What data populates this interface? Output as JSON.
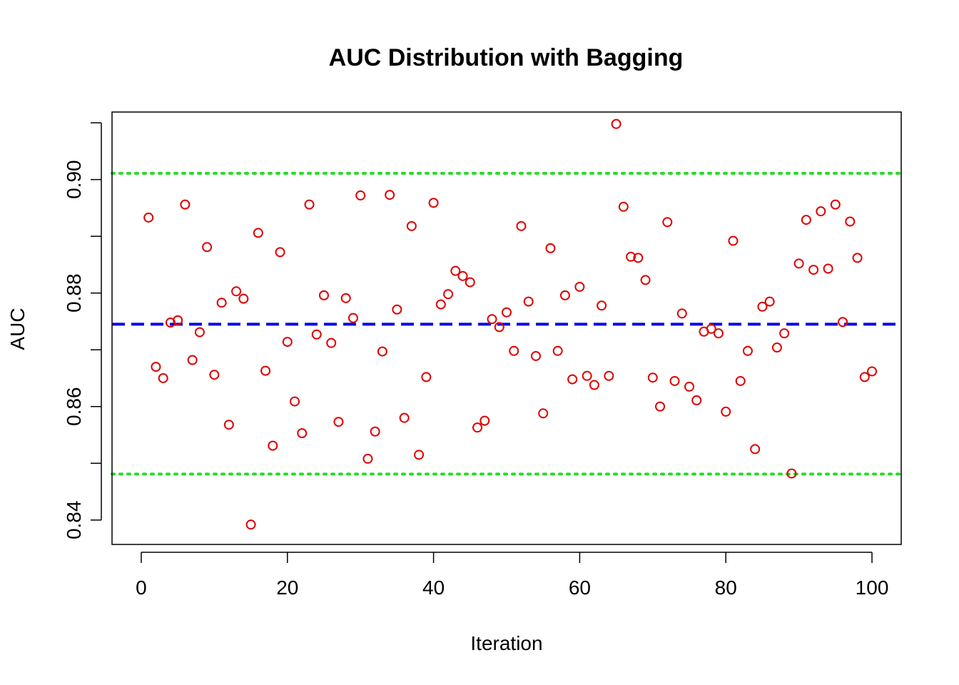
{
  "chart_data": {
    "type": "scatter",
    "title": "AUC Distribution with Bagging",
    "xlabel": "Iteration",
    "ylabel": "AUC",
    "xlim": [
      -4,
      104
    ],
    "ylim": [
      0.8357,
      0.9119
    ],
    "xticks": [
      0,
      20,
      40,
      60,
      80,
      100
    ],
    "xtick_labels": [
      "0",
      "20",
      "40",
      "60",
      "80",
      "100"
    ],
    "yticks": [
      0.84,
      0.85,
      0.86,
      0.87,
      0.88,
      0.89,
      0.9,
      0.91
    ],
    "ytick_labels": [
      "0.84",
      "",
      "0.86",
      "",
      "0.88",
      "",
      "0.90",
      ""
    ],
    "grid": false,
    "legend": "none",
    "series": [
      {
        "marker": "open-circle",
        "color": "#e00000",
        "x": [
          1,
          2,
          3,
          4,
          5,
          6,
          7,
          8,
          9,
          10,
          11,
          12,
          13,
          14,
          15,
          16,
          17,
          18,
          19,
          20,
          21,
          22,
          23,
          24,
          25,
          26,
          27,
          28,
          29,
          30,
          31,
          32,
          33,
          34,
          35,
          36,
          37,
          38,
          39,
          40,
          41,
          42,
          43,
          44,
          45,
          46,
          47,
          48,
          49,
          50,
          51,
          52,
          53,
          54,
          55,
          56,
          57,
          58,
          59,
          60,
          61,
          62,
          63,
          64,
          65,
          66,
          67,
          68,
          69,
          70,
          71,
          72,
          73,
          74,
          75,
          76,
          77,
          78,
          79,
          80,
          81,
          82,
          83,
          84,
          85,
          86,
          87,
          88,
          89,
          90,
          91,
          92,
          93,
          94,
          95,
          96,
          97,
          98,
          99,
          100
        ],
        "y": [
          0.8933,
          0.867,
          0.865,
          0.8748,
          0.8752,
          0.8956,
          0.8682,
          0.8731,
          0.8881,
          0.8656,
          0.8783,
          0.8568,
          0.8803,
          0.879,
          0.8392,
          0.8906,
          0.8663,
          0.8531,
          0.8872,
          0.8714,
          0.8609,
          0.8553,
          0.8956,
          0.8727,
          0.8796,
          0.8712,
          0.8573,
          0.8791,
          0.8756,
          0.8972,
          0.8508,
          0.8556,
          0.8697,
          0.8973,
          0.8771,
          0.858,
          0.8918,
          0.8515,
          0.8652,
          0.8959,
          0.878,
          0.8798,
          0.8839,
          0.883,
          0.8819,
          0.8563,
          0.8575,
          0.8754,
          0.874,
          0.8766,
          0.8698,
          0.8918,
          0.8785,
          0.8689,
          0.8588,
          0.8879,
          0.8698,
          0.8796,
          0.8648,
          0.8811,
          0.8654,
          0.8638,
          0.8778,
          0.8654,
          0.9098,
          0.8952,
          0.8864,
          0.8862,
          0.8823,
          0.8651,
          0.86,
          0.8925,
          0.8645,
          0.8764,
          0.8635,
          0.8611,
          0.8732,
          0.8737,
          0.8729,
          0.8591,
          0.8892,
          0.8645,
          0.8698,
          0.8525,
          0.8776,
          0.8785,
          0.8704,
          0.8729,
          0.8482,
          0.8852,
          0.8929,
          0.8841,
          0.8944,
          0.8843,
          0.8956,
          0.8749,
          0.8926,
          0.8862,
          0.8652,
          0.8662
        ]
      }
    ],
    "reference_lines": [
      {
        "kind": "mean",
        "y": 0.8745,
        "style": "dashed",
        "color": "#0000ee"
      },
      {
        "kind": "upper",
        "y": 0.9011,
        "style": "dotted",
        "color": "#22dd22"
      },
      {
        "kind": "lower",
        "y": 0.8481,
        "style": "dotted",
        "color": "#22dd22"
      }
    ]
  }
}
